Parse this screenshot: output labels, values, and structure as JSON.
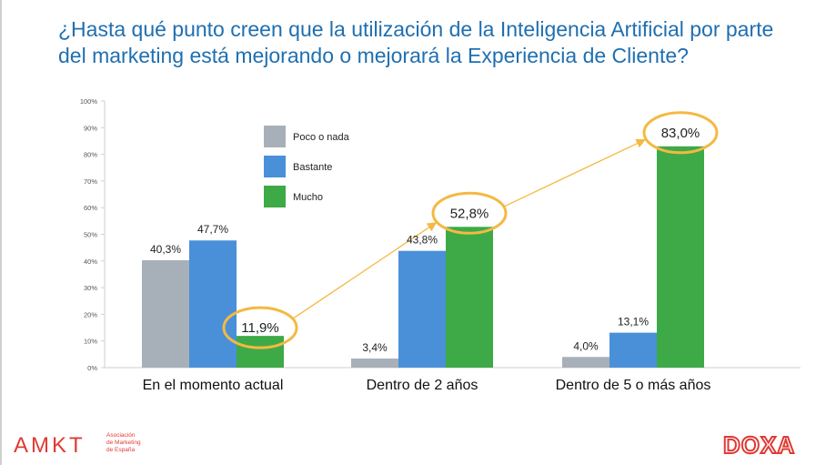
{
  "title": "¿Hasta qué punto creen que la utilización de la Inteligencia Artificial por parte del marketing está mejorando o mejorará la Experiencia de Cliente?",
  "colors": {
    "title": "#1f6fb0",
    "poco": "#a7b0b8",
    "bastante": "#4a90d9",
    "mucho": "#3daa47",
    "highlight": "#f4b942",
    "brand_red": "#e03a34"
  },
  "chart_data": {
    "type": "bar",
    "categories": [
      "En el momento actual",
      "Dentro de 2 años",
      "Dentro de 5 o más años"
    ],
    "series": [
      {
        "name": "Poco o nada",
        "values": [
          40.3,
          3.4,
          4.0
        ],
        "labels": [
          "40,3%",
          "3,4%",
          "4,0%"
        ]
      },
      {
        "name": "Bastante",
        "values": [
          47.7,
          43.8,
          13.1
        ],
        "labels": [
          "47,7%",
          "43,8%",
          "13,1%"
        ]
      },
      {
        "name": "Mucho",
        "values": [
          11.9,
          52.8,
          83.0
        ],
        "labels": [
          "11,9%",
          "52,8%",
          "83,0%"
        ]
      }
    ],
    "ylim": [
      0,
      100
    ],
    "yticks": [
      "0%",
      "10%",
      "20%",
      "30%",
      "40%",
      "50%",
      "60%",
      "70%",
      "80%",
      "90%",
      "100%"
    ],
    "legend": "inside-upper-left",
    "grid": false,
    "annotations": {
      "highlighted_series": "Mucho",
      "trend_arrow": "connects Mucho values across categories"
    }
  },
  "logos": {
    "left_mark": "AMKT",
    "left_subtitle": "Asociación\nde Marketing\nde España",
    "right_mark": "DOXA"
  }
}
